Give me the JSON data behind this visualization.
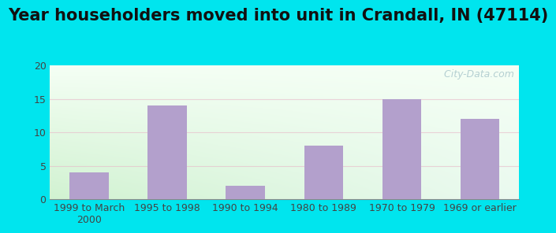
{
  "title": "Year householders moved into unit in Crandall, IN (47114)",
  "categories": [
    "1999 to March\n2000",
    "1995 to 1998",
    "1990 to 1994",
    "1980 to 1989",
    "1970 to 1979",
    "1969 or earlier"
  ],
  "values": [
    4,
    14,
    2,
    8,
    15,
    12
  ],
  "bar_color": "#b3a0cc",
  "ylim": [
    0,
    20
  ],
  "yticks": [
    0,
    5,
    10,
    15,
    20
  ],
  "background_outer": "#00e5ee",
  "title_fontsize": 15,
  "tick_fontsize": 9,
  "watermark": "  City-Data.com",
  "grid_color": "#e8b8c8",
  "grid_alpha": 0.6
}
